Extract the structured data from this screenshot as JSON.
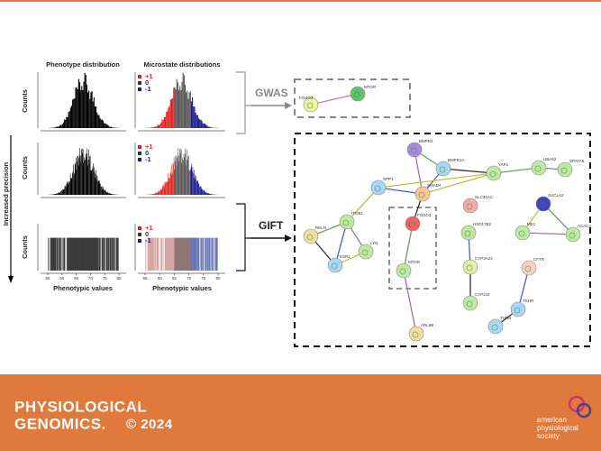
{
  "figure": {
    "phenotype_title": "Phenotype distribution",
    "microstate_title": "Microstate distributions",
    "counts_label": [
      "Counts",
      "Counts",
      "Counts"
    ],
    "precision_label": "Increased precision",
    "x_label": [
      "Phenotypic values",
      "Phenotypic values"
    ],
    "legend": [
      [
        "+1",
        "0",
        "-1"
      ],
      [
        "+1",
        "0",
        "-1"
      ],
      [
        "+1",
        "0",
        "-1"
      ]
    ],
    "x_ticks": [
      55,
      60,
      65,
      70,
      75,
      80
    ],
    "gwas": "GWAS",
    "gift": "GIFT",
    "gwas_nodes": [
      "FOXO3",
      "MTOR"
    ],
    "gift_nodes": [
      "BMPR2",
      "BMPR1A",
      "YAP1",
      "UBA52",
      "SPATA5",
      "SMAD4",
      "SPP1",
      "ITGB1",
      "RELN",
      "LYN",
      "ESR1",
      "FOXO3",
      "MTOR",
      "ARL8B",
      "SLC34A1",
      "HSD17B2",
      "CYP3A24",
      "CYP2J2",
      "SUCLA2",
      "ME1",
      "ACACA",
      "CFTR",
      "TSHR",
      "THRB"
    ]
  },
  "footer": {
    "journal_line1": "PHYSIOLOGICAL",
    "journal_line2": "GENOMICS.",
    "copyright": "© 2024",
    "publisher": [
      "american",
      "physiological",
      "society"
    ]
  }
}
